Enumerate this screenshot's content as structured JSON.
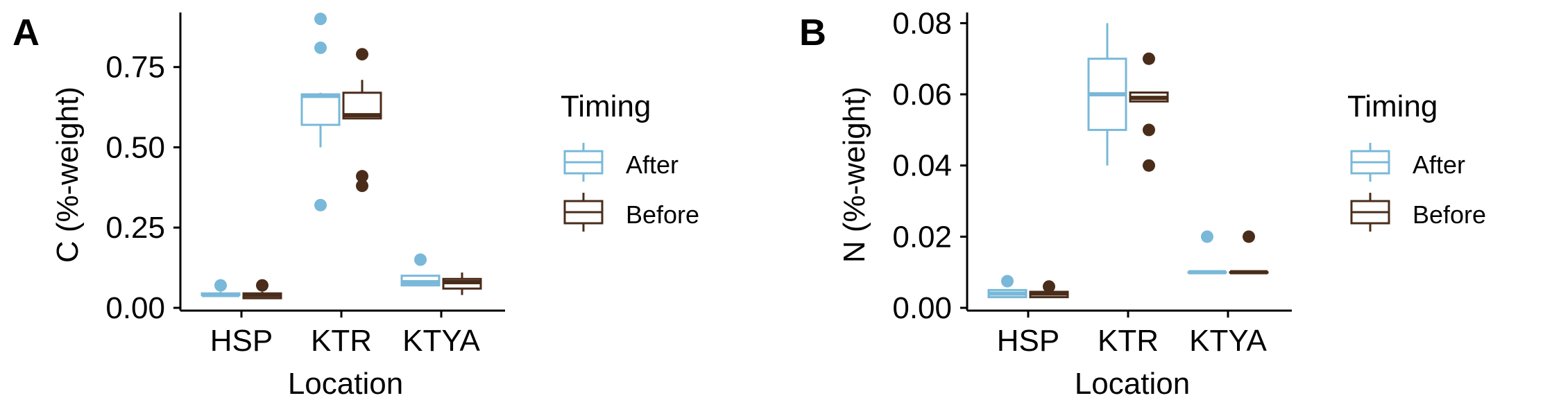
{
  "colors": {
    "After": "#79B8D8",
    "Before": "#4A2C1A"
  },
  "chart_data": [
    {
      "type": "box",
      "panel_label": "A",
      "xlabel": "Location",
      "ylabel": "C (%-weight)",
      "categories": [
        "HSP",
        "KTR",
        "KTYA"
      ],
      "ylim": [
        0,
        0.92
      ],
      "yticks": [
        0.0,
        0.25,
        0.5,
        0.75
      ],
      "ytick_labels": [
        "0.00",
        "0.25",
        "0.50",
        "0.75"
      ],
      "legend": {
        "title": "Timing",
        "entries": [
          "After",
          "Before"
        ],
        "position": "right"
      },
      "series": [
        {
          "name": "After",
          "boxes": [
            {
              "category": "HSP",
              "lower_whisker": 0.04,
              "q1": 0.04,
              "median": 0.04,
              "q3": 0.045,
              "upper_whisker": 0.05,
              "outliers": [
                0.07
              ]
            },
            {
              "category": "KTR",
              "lower_whisker": 0.5,
              "q1": 0.57,
              "median": 0.66,
              "q3": 0.665,
              "upper_whisker": 0.67,
              "outliers": [
                0.9,
                0.81,
                0.32
              ]
            },
            {
              "category": "KTYA",
              "lower_whisker": 0.07,
              "q1": 0.07,
              "median": 0.08,
              "q3": 0.1,
              "upper_whisker": 0.1,
              "outliers": [
                0.15
              ]
            }
          ]
        },
        {
          "name": "Before",
          "boxes": [
            {
              "category": "HSP",
              "lower_whisker": 0.03,
              "q1": 0.03,
              "median": 0.04,
              "q3": 0.045,
              "upper_whisker": 0.05,
              "outliers": [
                0.07
              ]
            },
            {
              "category": "KTR",
              "lower_whisker": 0.59,
              "q1": 0.59,
              "median": 0.6,
              "q3": 0.67,
              "upper_whisker": 0.71,
              "outliers": [
                0.79,
                0.41,
                0.38
              ]
            },
            {
              "category": "KTYA",
              "lower_whisker": 0.04,
              "q1": 0.06,
              "median": 0.08,
              "q3": 0.09,
              "upper_whisker": 0.11,
              "outliers": []
            }
          ]
        }
      ]
    },
    {
      "type": "box",
      "panel_label": "B",
      "xlabel": "Location",
      "ylabel": "N (%-weight)",
      "categories": [
        "HSP",
        "KTR",
        "KTYA"
      ],
      "ylim": [
        0,
        0.083
      ],
      "yticks": [
        0.0,
        0.02,
        0.04,
        0.06,
        0.08
      ],
      "ytick_labels": [
        "0.00",
        "0.02",
        "0.04",
        "0.06",
        "0.08"
      ],
      "legend": {
        "title": "Timing",
        "entries": [
          "After",
          "Before"
        ],
        "position": "right"
      },
      "series": [
        {
          "name": "After",
          "boxes": [
            {
              "category": "HSP",
              "lower_whisker": 0.003,
              "q1": 0.003,
              "median": 0.004,
              "q3": 0.005,
              "upper_whisker": 0.005,
              "outliers": [
                0.0075
              ]
            },
            {
              "category": "KTR",
              "lower_whisker": 0.04,
              "q1": 0.05,
              "median": 0.06,
              "q3": 0.07,
              "upper_whisker": 0.08,
              "outliers": []
            },
            {
              "category": "KTYA",
              "lower_whisker": 0.01,
              "q1": 0.01,
              "median": 0.01,
              "q3": 0.01,
              "upper_whisker": 0.01,
              "outliers": [
                0.02
              ]
            }
          ]
        },
        {
          "name": "Before",
          "boxes": [
            {
              "category": "HSP",
              "lower_whisker": 0.003,
              "q1": 0.003,
              "median": 0.004,
              "q3": 0.0045,
              "upper_whisker": 0.0045,
              "outliers": [
                0.006
              ]
            },
            {
              "category": "KTR",
              "lower_whisker": 0.058,
              "q1": 0.058,
              "median": 0.059,
              "q3": 0.0605,
              "upper_whisker": 0.0605,
              "outliers": [
                0.07,
                0.05,
                0.04
              ]
            },
            {
              "category": "KTYA",
              "lower_whisker": 0.01,
              "q1": 0.01,
              "median": 0.01,
              "q3": 0.01,
              "upper_whisker": 0.01,
              "outliers": [
                0.02
              ]
            }
          ]
        }
      ]
    }
  ]
}
